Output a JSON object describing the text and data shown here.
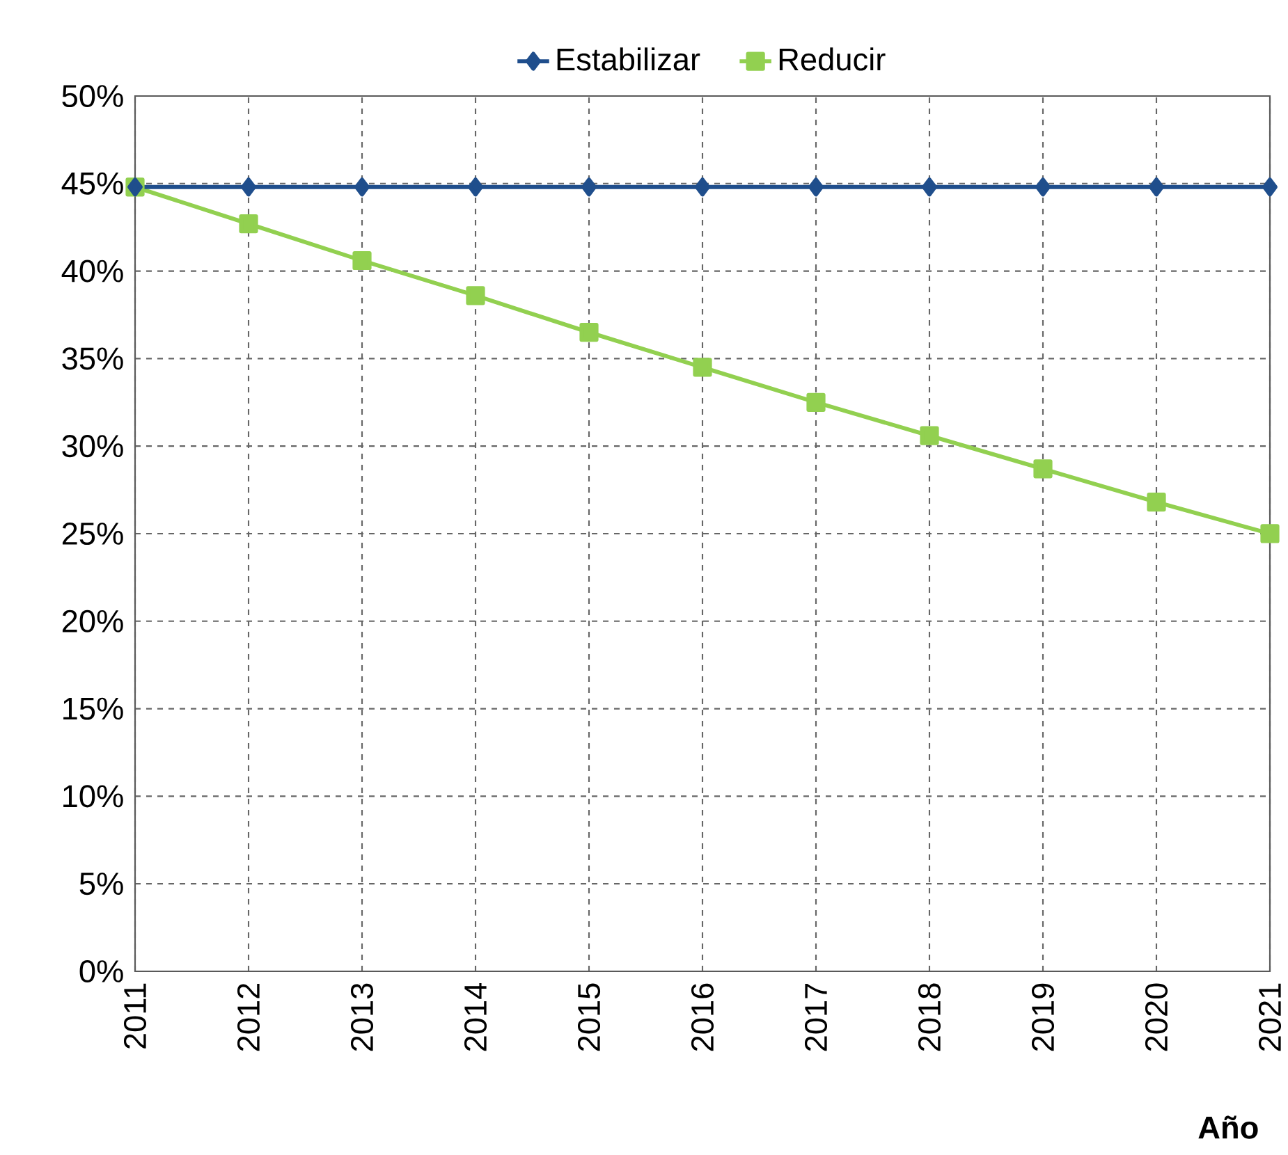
{
  "chart_data": {
    "type": "line",
    "xlabel": "Año",
    "x": [
      2011,
      2012,
      2013,
      2014,
      2015,
      2016,
      2017,
      2018,
      2019,
      2020,
      2021
    ],
    "series": [
      {
        "name": "Estabilizar",
        "color": "#1f4e8c",
        "marker": "diamond",
        "values": [
          44.8,
          44.8,
          44.8,
          44.8,
          44.8,
          44.8,
          44.8,
          44.8,
          44.8,
          44.8,
          44.8
        ]
      },
      {
        "name": "Reducir",
        "color": "#92d050",
        "marker": "square",
        "values": [
          44.8,
          42.7,
          40.6,
          38.6,
          36.5,
          34.5,
          32.5,
          30.6,
          28.7,
          26.8,
          25.0
        ]
      }
    ],
    "xlim": [
      2011,
      2021
    ],
    "xticks": [
      2011,
      2012,
      2013,
      2014,
      2015,
      2016,
      2017,
      2018,
      2019,
      2020,
      2021
    ],
    "ylim": [
      0,
      50
    ],
    "yticks": [
      {
        "value": 0,
        "label": "0%"
      },
      {
        "value": 5,
        "label": "5%"
      },
      {
        "value": 10,
        "label": "10%"
      },
      {
        "value": 15,
        "label": "15%"
      },
      {
        "value": 20,
        "label": "20%"
      },
      {
        "value": 25,
        "label": "25%"
      },
      {
        "value": 30,
        "label": "30%"
      },
      {
        "value": 35,
        "label": "35%"
      },
      {
        "value": 40,
        "label": "40%"
      },
      {
        "value": 45,
        "label": "45%"
      },
      {
        "value": 50,
        "label": "50%"
      }
    ],
    "grid": true,
    "legend": "top",
    "line_style": "solid"
  }
}
